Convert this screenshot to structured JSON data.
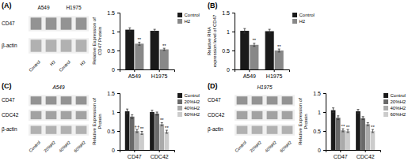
{
  "chart_data": [
    {
      "type": "blot",
      "categories": [
        "Control",
        "H2",
        "Control",
        "H2"
      ],
      "series": [
        {
          "name": "CD47",
          "color": "#888888"
        },
        {
          "name": "β-actin",
          "color": "#aaaaaa"
        }
      ],
      "annotations": [
        "A549",
        "H1975"
      ]
    },
    {
      "type": "bar",
      "annotations": [
        "(A)"
      ],
      "categories": [
        "A549",
        "H1975"
      ],
      "ylabel": "Relative Expression of\nCD47 Protein",
      "ylim": [
        0,
        1.5
      ],
      "yticks": [
        0,
        0.5,
        1,
        1.5
      ],
      "grid": false,
      "legend": "right",
      "series": [
        {
          "name": "Control",
          "color": "#1a1a1a",
          "values": [
            1.05,
            1.02
          ],
          "errors": [
            0.05,
            0.04
          ]
        },
        {
          "name": "H2",
          "color": "#888888",
          "values": [
            0.68,
            0.53
          ],
          "errors": [
            0.04,
            0.03
          ],
          "annotations": [
            "**",
            "**"
          ]
        }
      ]
    },
    {
      "type": "bar",
      "annotations": [
        "(B)"
      ],
      "categories": [
        "A549",
        "H1975"
      ],
      "ylabel": "Relative RNA\nexpression level of CD47",
      "ylim": [
        0,
        1.5
      ],
      "yticks": [
        0,
        0.5,
        1,
        1.5
      ],
      "grid": false,
      "legend": "right",
      "series": [
        {
          "name": "Control",
          "color": "#1a1a1a",
          "values": [
            1.02,
            1.01
          ],
          "errors": [
            0.06,
            0.05
          ]
        },
        {
          "name": "H2",
          "color": "#888888",
          "values": [
            0.65,
            0.5
          ],
          "errors": [
            0.04,
            0.04
          ],
          "annotations": [
            "**",
            "**"
          ]
        }
      ]
    },
    {
      "type": "blot",
      "title": "A549",
      "categories": [
        "Control",
        "20%H2",
        "40%H2",
        "60%H2"
      ],
      "series": [
        {
          "name": "CD47",
          "color": "#888888"
        },
        {
          "name": "CDC42",
          "color": "#999999"
        },
        {
          "name": "β-actin",
          "color": "#aaaaaa"
        }
      ]
    },
    {
      "type": "bar",
      "annotations": [
        "(C)"
      ],
      "categories": [
        "CD47",
        "CDC42"
      ],
      "ylabel": "Relative Expression of\nProtein",
      "ylim": [
        0,
        1.5
      ],
      "yticks": [
        0,
        0.5,
        1,
        1.5
      ],
      "grid": false,
      "legend": "right",
      "series": [
        {
          "name": "Control",
          "color": "#1a1a1a",
          "values": [
            1.02,
            1.0
          ],
          "errors": [
            0.06,
            0.05
          ]
        },
        {
          "name": "20%H2",
          "color": "#696969",
          "values": [
            0.88,
            0.96
          ],
          "errors": [
            0.05,
            0.04
          ]
        },
        {
          "name": "40%H2",
          "color": "#aaaaaa",
          "values": [
            0.5,
            0.68
          ],
          "errors": [
            0.04,
            0.04
          ],
          "annotations": [
            "††",
            "**"
          ]
        },
        {
          "name": "60%H2",
          "color": "#cccccc",
          "values": [
            0.45,
            0.48
          ],
          "errors": [
            0.04,
            0.04
          ],
          "annotations": [
            "**",
            "**"
          ]
        }
      ]
    },
    {
      "type": "blot",
      "title": "H1975",
      "categories": [
        "Control",
        "20%H2",
        "40%H2",
        "60%H2"
      ],
      "series": [
        {
          "name": "CD47",
          "color": "#888888"
        },
        {
          "name": "CDC42",
          "color": "#999999"
        },
        {
          "name": "β-actin",
          "color": "#aaaaaa"
        }
      ]
    },
    {
      "type": "bar",
      "annotations": [
        "(D)"
      ],
      "categories": [
        "CD47",
        "CDC42"
      ],
      "ylabel": "Relative Expression of\nProtein",
      "ylim": [
        0,
        1.5
      ],
      "yticks": [
        0,
        0.5,
        1,
        1.5
      ],
      "grid": false,
      "legend": "right",
      "series": [
        {
          "name": "Control",
          "color": "#1a1a1a",
          "values": [
            1.05,
            1.02
          ],
          "errors": [
            0.06,
            0.05
          ]
        },
        {
          "name": "20%H2",
          "color": "#696969",
          "values": [
            0.85,
            0.84
          ],
          "errors": [
            0.05,
            0.04
          ]
        },
        {
          "name": "40%H2",
          "color": "#aaaaaa",
          "values": [
            0.52,
            0.68
          ],
          "errors": [
            0.04,
            0.04
          ],
          "annotations": [
            "**",
            null
          ]
        },
        {
          "name": "60%H2",
          "color": "#cccccc",
          "values": [
            0.5,
            0.5
          ],
          "errors": [
            0.04,
            0.04
          ],
          "annotations": [
            "**",
            "**"
          ]
        }
      ]
    }
  ]
}
